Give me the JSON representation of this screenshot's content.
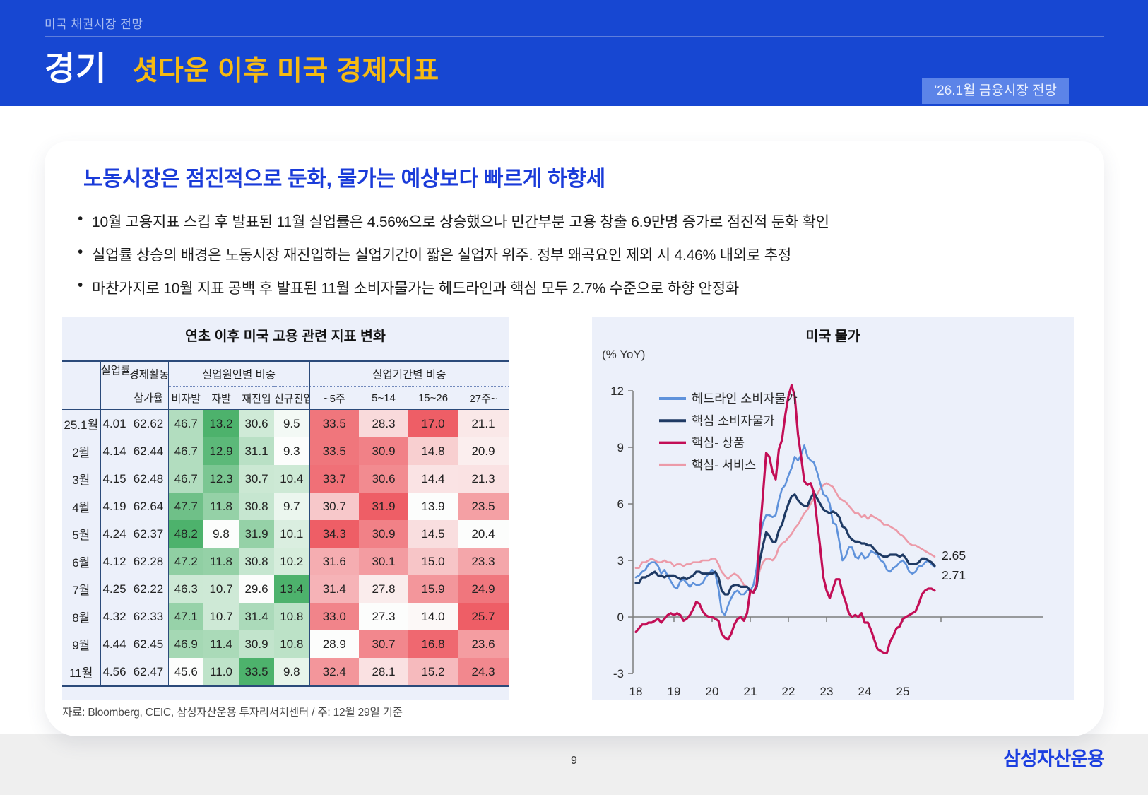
{
  "header": {
    "eyebrow": "미국 채권시장 전망",
    "section": "경기",
    "title": "셧다운 이후 미국 경제지표",
    "badge": "'26.1월 금융시장 전망"
  },
  "main": {
    "headline": "노동시장은 점진적으로 둔화, 물가는 예상보다 빠르게 하향세",
    "bullets": [
      "10월 고용지표 스킵 후 발표된 11월 실업률은 4.56%으로 상승했으나 민간부분 고용 창출 6.9만명 증가로 점진적 둔화 확인",
      "실업률 상승의 배경은 노동시장 재진입하는 실업기간이 짧은 실업자 위주. 정부 왜곡요인 제외 시 4.46% 내외로 추정",
      "마찬가지로 10월 지표 공백 후 발표된 11월 소비자물가는 헤드라인과 핵심 모두 2.7% 수준으로 하향 안정화"
    ],
    "source_note": "자료: Bloomberg, CEIC, 삼성자산운용 투자리서치센터 / 주: 12월 29일 기준"
  },
  "table": {
    "title": "연초 이후 미국 고용 관련 지표 변화",
    "col1": "실업률",
    "col2_line1": "경제활동",
    "col2_line2": "참가율",
    "group1": "실업원인별 비중",
    "group1_cols": [
      "비자발",
      "자발",
      "재진입",
      "신규진입"
    ],
    "group2": "실업기간별 비중",
    "group2_cols": [
      "~5주",
      "5~14",
      "15~26",
      "27주~"
    ],
    "rows": [
      {
        "month": "25.1월",
        "rate": "4.01",
        "participation": "62.62",
        "cause": [
          "46.7",
          "13.2",
          "30.6",
          "9.5"
        ],
        "duration": [
          "33.5",
          "28.3",
          "17.0",
          "21.1"
        ]
      },
      {
        "month": "2월",
        "rate": "4.14",
        "participation": "62.44",
        "cause": [
          "46.7",
          "12.9",
          "31.1",
          "9.3"
        ],
        "duration": [
          "33.5",
          "30.9",
          "14.8",
          "20.9"
        ]
      },
      {
        "month": "3월",
        "rate": "4.15",
        "participation": "62.48",
        "cause": [
          "46.7",
          "12.3",
          "30.7",
          "10.4"
        ],
        "duration": [
          "33.7",
          "30.6",
          "14.4",
          "21.3"
        ]
      },
      {
        "month": "4월",
        "rate": "4.19",
        "participation": "62.64",
        "cause": [
          "47.7",
          "11.8",
          "30.8",
          "9.7"
        ],
        "duration": [
          "30.7",
          "31.9",
          "13.9",
          "23.5"
        ]
      },
      {
        "month": "5월",
        "rate": "4.24",
        "participation": "62.37",
        "cause": [
          "48.2",
          "9.8",
          "31.9",
          "10.1"
        ],
        "duration": [
          "34.3",
          "30.9",
          "14.5",
          "20.4"
        ]
      },
      {
        "month": "6월",
        "rate": "4.12",
        "participation": "62.28",
        "cause": [
          "47.2",
          "11.8",
          "30.8",
          "10.2"
        ],
        "duration": [
          "31.6",
          "30.1",
          "15.0",
          "23.3"
        ]
      },
      {
        "month": "7월",
        "rate": "4.25",
        "participation": "62.22",
        "cause": [
          "46.3",
          "10.7",
          "29.6",
          "13.4"
        ],
        "duration": [
          "31.4",
          "27.8",
          "15.9",
          "24.9"
        ]
      },
      {
        "month": "8월",
        "rate": "4.32",
        "participation": "62.33",
        "cause": [
          "47.1",
          "10.7",
          "31.4",
          "10.8"
        ],
        "duration": [
          "33.0",
          "27.3",
          "14.0",
          "25.7"
        ]
      },
      {
        "month": "9월",
        "rate": "4.44",
        "participation": "62.45",
        "cause": [
          "46.9",
          "11.4",
          "30.9",
          "10.8"
        ],
        "duration": [
          "28.9",
          "30.7",
          "16.8",
          "23.6"
        ]
      },
      {
        "month": "11월",
        "rate": "4.56",
        "participation": "62.47",
        "cause": [
          "45.6",
          "11.0",
          "33.5",
          "9.8"
        ],
        "duration": [
          "32.4",
          "28.1",
          "15.2",
          "24.3"
        ]
      }
    ],
    "heat_green_max": "#4DB26C",
    "heat_red_max": "#EE5E66",
    "heat_min": "#FCFDFC"
  },
  "chart_data": {
    "type": "line",
    "title": "미국 물가",
    "unit_label": "(% YoY)",
    "x_start_year": 2018,
    "x_step_months": 1,
    "x_tick_labels": [
      "18",
      "19",
      "20",
      "21",
      "22",
      "23",
      "24",
      "25"
    ],
    "ylim": [
      -3,
      12
    ],
    "y_ticks": [
      -3,
      0,
      3,
      6,
      9,
      12
    ],
    "grid": false,
    "legend_position": "top-left",
    "end_labels": [
      "2.65",
      "2.71"
    ],
    "series": [
      {
        "name": "헤드라인 소비자물가",
        "color": "#5F92DB",
        "values": [
          2.1,
          2.2,
          2.4,
          2.5,
          2.8,
          2.9,
          2.9,
          2.7,
          2.3,
          2.5,
          2.2,
          1.9,
          1.6,
          1.5,
          1.9,
          2.0,
          1.8,
          1.6,
          1.8,
          1.7,
          1.7,
          1.8,
          2.1,
          2.3,
          2.5,
          2.3,
          1.5,
          0.3,
          0.1,
          0.6,
          1.0,
          1.3,
          1.4,
          1.2,
          1.2,
          1.4,
          1.4,
          1.7,
          2.6,
          4.2,
          5.0,
          5.4,
          5.4,
          5.3,
          5.4,
          6.2,
          6.8,
          7.0,
          7.5,
          7.9,
          8.5,
          8.3,
          8.6,
          9.1,
          8.5,
          8.3,
          8.2,
          7.7,
          7.1,
          6.5,
          6.4,
          6.0,
          5.0,
          4.9,
          4.0,
          3.0,
          3.2,
          3.7,
          3.7,
          3.2,
          3.1,
          3.4,
          3.1,
          3.2,
          3.5,
          3.4,
          3.3,
          3.0,
          2.9,
          2.5,
          2.4,
          2.6,
          2.7,
          2.9,
          3.0,
          2.8,
          2.4,
          2.3,
          2.4,
          2.7,
          2.7,
          2.9,
          3.0,
          2.8,
          2.65
        ]
      },
      {
        "name": "핵심 소비자물가",
        "color": "#1F3A64",
        "values": [
          1.8,
          1.8,
          2.1,
          2.1,
          2.2,
          2.3,
          2.4,
          2.2,
          2.2,
          2.1,
          2.2,
          2.2,
          2.2,
          2.1,
          2.0,
          2.1,
          2.0,
          2.1,
          2.2,
          2.4,
          2.4,
          2.3,
          2.3,
          2.3,
          2.3,
          2.4,
          2.1,
          1.4,
          1.2,
          1.2,
          1.6,
          1.7,
          1.7,
          1.6,
          1.6,
          1.6,
          1.4,
          1.3,
          1.6,
          3.0,
          3.8,
          4.5,
          4.3,
          4.0,
          4.0,
          4.6,
          4.9,
          5.5,
          6.0,
          6.4,
          6.5,
          6.2,
          6.0,
          5.9,
          5.9,
          6.3,
          6.6,
          6.3,
          6.0,
          5.7,
          5.6,
          5.5,
          5.6,
          5.5,
          5.3,
          4.8,
          4.7,
          4.3,
          4.1,
          4.0,
          4.0,
          3.9,
          3.9,
          3.8,
          3.8,
          3.6,
          3.4,
          3.3,
          3.2,
          3.2,
          3.3,
          3.3,
          3.3,
          3.2,
          3.3,
          3.1,
          2.8,
          2.8,
          2.8,
          2.9,
          3.1,
          3.1,
          3.0,
          2.9,
          2.71
        ]
      },
      {
        "name": "핵심- 상품",
        "color": "#C30E56",
        "values": [
          -0.8,
          -0.6,
          -0.4,
          -0.4,
          -0.3,
          -0.3,
          -0.2,
          -0.1,
          -0.3,
          -0.1,
          0.1,
          0.2,
          0.1,
          0.2,
          0.1,
          -0.2,
          -0.1,
          0.1,
          0.4,
          0.8,
          0.7,
          0.3,
          0.1,
          0.0,
          0.0,
          -0.1,
          -0.2,
          -0.9,
          -1.1,
          -1.2,
          -0.9,
          -0.4,
          -0.1,
          0.0,
          -0.2,
          0.2,
          1.4,
          1.3,
          1.7,
          4.4,
          6.5,
          8.7,
          8.5,
          7.7,
          7.3,
          8.9,
          9.4,
          10.7,
          11.7,
          12.3,
          11.7,
          9.7,
          8.5,
          7.2,
          7.0,
          7.1,
          6.6,
          5.1,
          3.7,
          2.1,
          1.4,
          1.0,
          1.5,
          2.0,
          2.0,
          1.3,
          0.8,
          0.2,
          0.0,
          0.1,
          0.0,
          0.2,
          -0.3,
          -0.3,
          -0.7,
          -1.2,
          -1.7,
          -1.8,
          -1.9,
          -1.9,
          -1.3,
          -1.0,
          -0.6,
          -0.5,
          -0.1,
          0.0,
          0.1,
          0.2,
          0.3,
          0.7,
          1.2,
          1.4,
          1.5,
          1.5,
          1.4
        ]
      },
      {
        "name": "핵심- 서비스",
        "color": "#EC9AA8",
        "values": [
          2.6,
          2.6,
          2.9,
          2.9,
          3.0,
          3.1,
          3.0,
          2.9,
          2.9,
          3.0,
          2.9,
          2.9,
          2.7,
          2.8,
          2.8,
          2.7,
          2.8,
          2.8,
          2.9,
          2.9,
          2.9,
          3.0,
          3.0,
          3.0,
          3.1,
          3.1,
          2.8,
          2.4,
          2.2,
          2.0,
          2.2,
          2.3,
          2.2,
          2.0,
          1.7,
          1.6,
          1.3,
          1.3,
          1.6,
          2.5,
          2.9,
          3.1,
          3.1,
          3.0,
          3.2,
          3.7,
          3.9,
          4.0,
          4.2,
          4.4,
          4.7,
          4.9,
          5.2,
          5.5,
          5.7,
          6.0,
          6.3,
          6.5,
          6.8,
          7.0,
          7.1,
          7.0,
          6.9,
          6.6,
          6.3,
          6.2,
          6.1,
          5.9,
          5.7,
          5.5,
          5.5,
          5.3,
          5.4,
          5.2,
          5.4,
          5.3,
          5.2,
          5.1,
          4.9,
          4.9,
          4.8,
          4.7,
          4.6,
          4.4,
          4.3,
          4.1,
          3.9,
          3.8,
          3.8,
          3.7,
          3.6,
          3.5,
          3.4,
          3.3,
          3.2
        ]
      }
    ]
  },
  "footer": {
    "page_number": "9",
    "logo": "삼성자산운용"
  },
  "colors": {
    "header_blue": "#1747D2",
    "badge_blue": "#5C84E8",
    "accent_yellow": "#F6BA12",
    "title_blue": "#1A3BD9",
    "panel_bg": "#ECF0FA",
    "table_border_navy": "#2B4A7A",
    "logo_blue": "#1C3FE0"
  }
}
